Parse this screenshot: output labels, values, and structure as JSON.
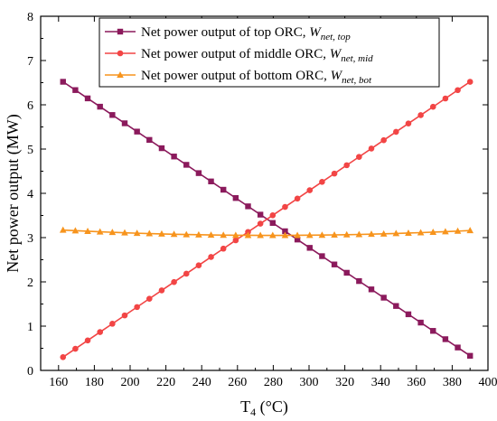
{
  "chart_data": {
    "type": "line",
    "xlabel": {
      "main": "T",
      "sub": "4",
      "unit": " (°C)"
    },
    "ylabel": "Net power output (MW)",
    "xlim": [
      150,
      400
    ],
    "ylim": [
      0,
      8
    ],
    "xticks": [
      160,
      180,
      200,
      220,
      240,
      260,
      280,
      300,
      320,
      340,
      360,
      380,
      400
    ],
    "yticks": [
      0,
      1,
      2,
      3,
      4,
      5,
      6,
      7,
      8
    ],
    "x_start": 162.5,
    "x_end": 390,
    "n_points": 34,
    "grid": false,
    "legend_position": "top-right",
    "series": [
      {
        "name": "Net power output of top ORC, ",
        "symbol_main": "W",
        "symbol_sub": "net, top",
        "marker": "square",
        "color": "#8B1A5C",
        "y_start": 6.52,
        "y_end": 0.33,
        "y_mid": null
      },
      {
        "name": "Net power output of middle ORC, ",
        "symbol_main": "W",
        "symbol_sub": "net, mid",
        "marker": "circle",
        "color": "#F24545",
        "y_start": 0.3,
        "y_end": 6.52,
        "y_mid": null
      },
      {
        "name": "Net power output of bottom ORC, ",
        "symbol_main": "W",
        "symbol_sub": "net, bot",
        "marker": "triangle",
        "color": "#F7941D",
        "y_start": 3.17,
        "y_end": 3.16,
        "y_mid": 3.05
      }
    ]
  }
}
